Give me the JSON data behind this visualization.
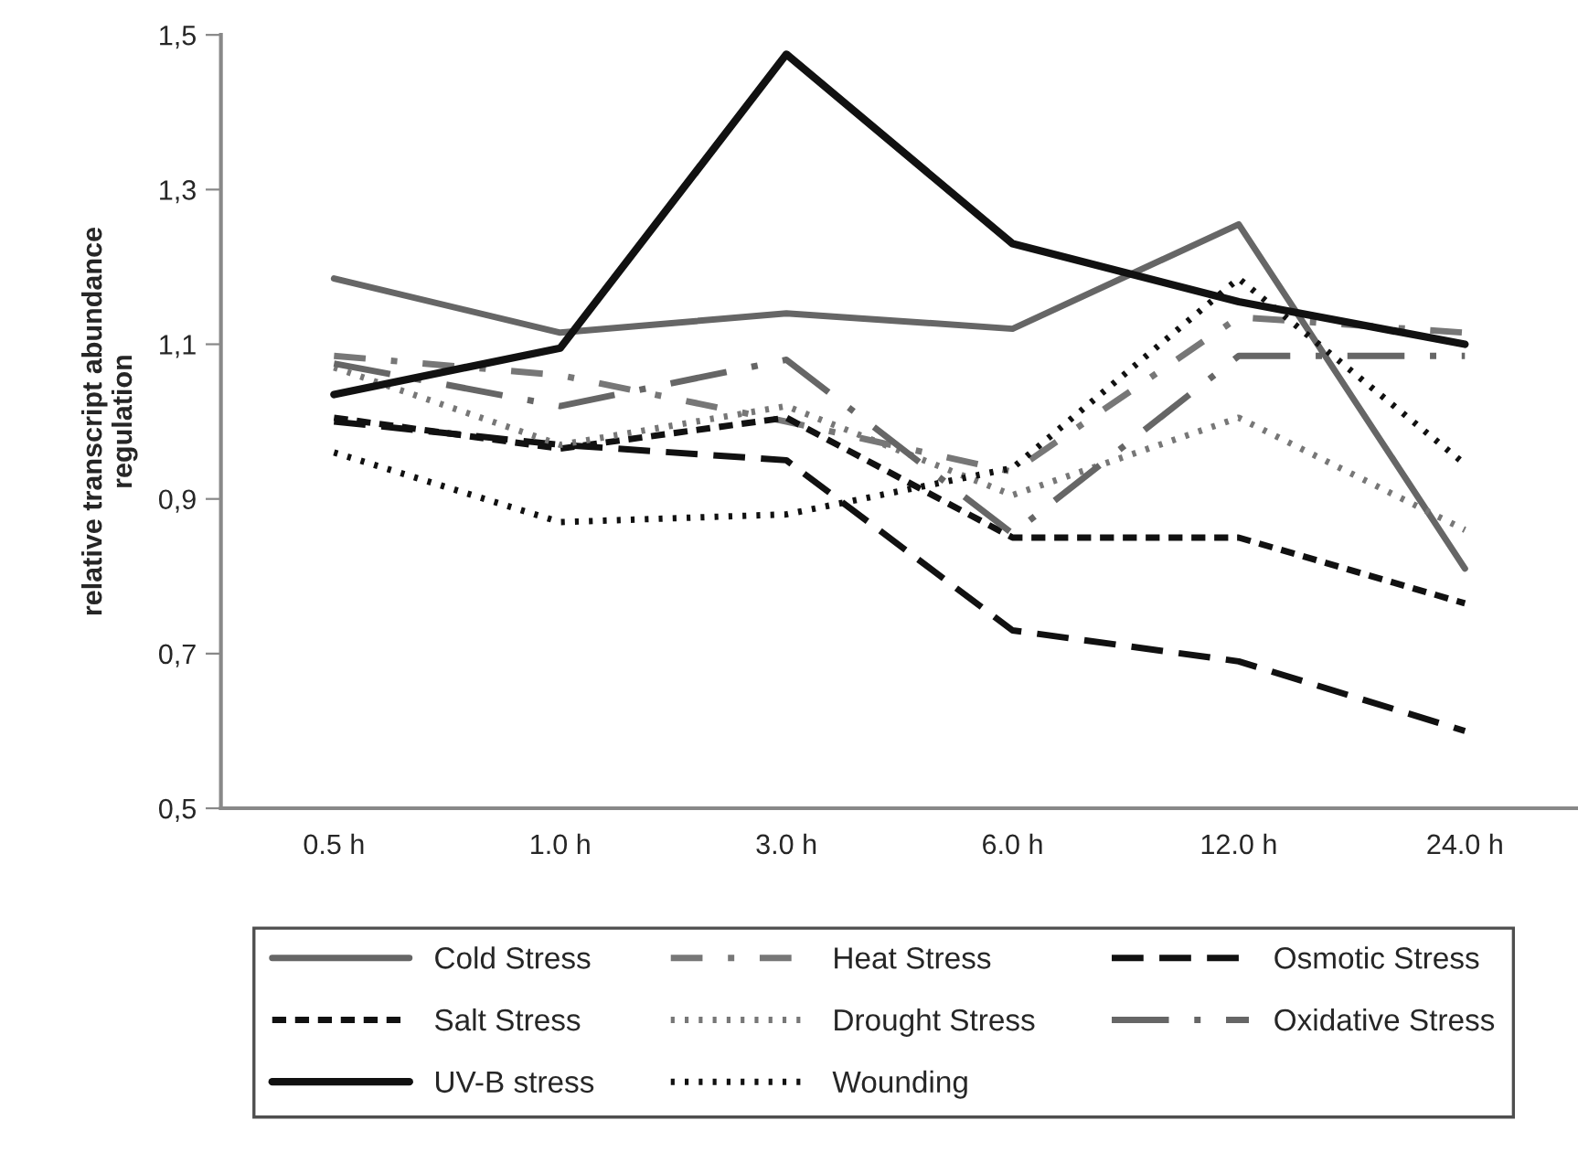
{
  "chart_data": {
    "type": "line",
    "ylabel": "relative transcript abundance\nregulation",
    "categories": [
      "0.5 h",
      "1.0 h",
      "3.0 h",
      "6.0 h",
      "12.0 h",
      "24.0 h"
    ],
    "ylim": [
      0.5,
      1.5
    ],
    "yticks": [
      {
        "value": 0.5,
        "label": "0,5"
      },
      {
        "value": 0.7,
        "label": "0,7"
      },
      {
        "value": 0.9,
        "label": "0,9"
      },
      {
        "value": 1.1,
        "label": "1,1"
      },
      {
        "value": 1.3,
        "label": "1,3"
      },
      {
        "value": 1.5,
        "label": "1,5"
      }
    ],
    "grid": false,
    "legend": "bottom",
    "marker": "none",
    "series": [
      {
        "name": "Cold Stress",
        "color": "#666666",
        "line_style": "solid",
        "values": [
          1.185,
          1.115,
          1.14,
          1.12,
          1.255,
          0.81
        ]
      },
      {
        "name": "Heat Stress",
        "color": "#777777",
        "line_style": "dashdot",
        "values": [
          1.085,
          1.06,
          1.0,
          0.935,
          1.135,
          1.115
        ]
      },
      {
        "name": "Osmotic Stress",
        "color": "#111111",
        "line_style": "dashed",
        "values": [
          1.0,
          0.97,
          0.95,
          0.73,
          0.69,
          0.6
        ]
      },
      {
        "name": "Salt Stress",
        "color": "#111111",
        "line_style": "shortdash",
        "values": [
          1.005,
          0.965,
          1.005,
          0.85,
          0.85,
          0.765
        ]
      },
      {
        "name": "Drought Stress",
        "color": "#777777",
        "line_style": "dotted",
        "values": [
          1.07,
          0.97,
          1.02,
          0.905,
          1.005,
          0.86
        ]
      },
      {
        "name": "Oxidative Stress",
        "color": "#666666",
        "line_style": "longdash",
        "values": [
          1.075,
          1.02,
          1.08,
          0.855,
          1.085,
          1.085
        ]
      },
      {
        "name": "UV-B stress",
        "color": "#111111",
        "line_style": "solid",
        "values": [
          1.035,
          1.095,
          1.475,
          1.23,
          1.155,
          1.1
        ]
      },
      {
        "name": "Wounding",
        "color": "#111111",
        "line_style": "dotted",
        "values": [
          0.96,
          0.87,
          0.88,
          0.94,
          1.185,
          0.945
        ]
      }
    ]
  }
}
